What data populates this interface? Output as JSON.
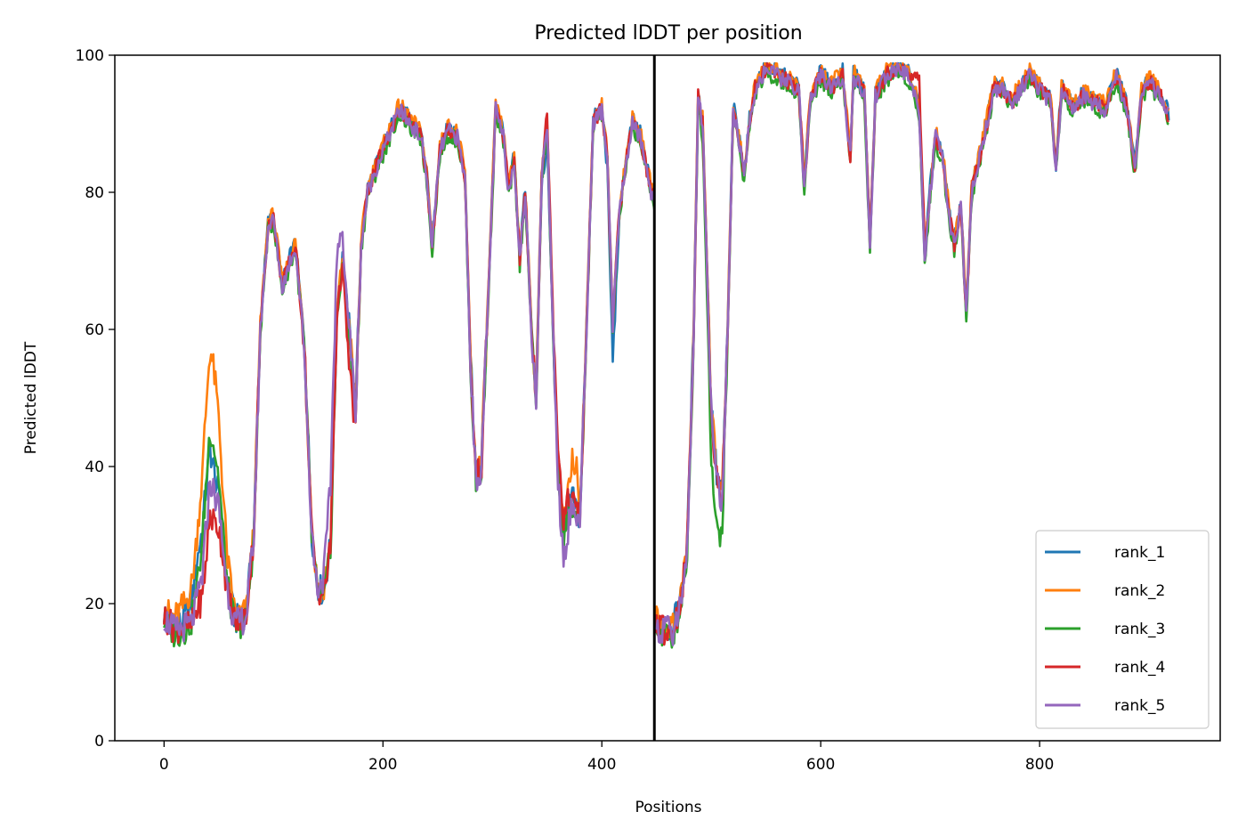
{
  "chart_data": {
    "type": "line",
    "title": "Predicted lDDT per position",
    "xlabel": "Positions",
    "ylabel": "Predicted lDDT",
    "xlim": [
      -45,
      965
    ],
    "ylim": [
      0,
      100
    ],
    "xticks": [
      0,
      200,
      400,
      600,
      800
    ],
    "yticks": [
      0,
      20,
      40,
      60,
      80,
      100
    ],
    "grid": false,
    "legend_position": "lower-right",
    "vertical_line": {
      "x": 448,
      "color": "#000000"
    },
    "series": [
      {
        "name": "rank_1",
        "color": "#1f77b4",
        "offset": 0.6,
        "bumps": [
          [
            35,
            8,
            6
          ],
          [
            410,
            4,
            -5
          ],
          [
            350,
            4,
            -3
          ]
        ]
      },
      {
        "name": "rank_2",
        "color": "#ff7f0e",
        "offset": 0.8,
        "bumps": [
          [
            42,
            9,
            18
          ],
          [
            375,
            4,
            6
          ],
          [
            20,
            10,
            2
          ]
        ]
      },
      {
        "name": "rank_3",
        "color": "#2ca02c",
        "offset": -0.5,
        "bumps": [
          [
            42,
            8,
            8
          ],
          [
            505,
            5,
            -5
          ],
          [
            500,
            6,
            -3
          ]
        ]
      },
      {
        "name": "rank_4",
        "color": "#d62728",
        "offset": 0.2,
        "bumps": [
          [
            42,
            8,
            -5
          ],
          [
            170,
            4,
            -5
          ],
          [
            690,
            4,
            4
          ],
          [
            360,
            8,
            3
          ]
        ]
      },
      {
        "name": "rank_5",
        "color": "#9467bd",
        "offset": 0.0,
        "bumps": [
          [
            155,
            6,
            10
          ],
          [
            365,
            5,
            -3
          ]
        ]
      }
    ],
    "profile": [
      [
        0,
        18
      ],
      [
        10,
        16
      ],
      [
        25,
        17
      ],
      [
        35,
        24
      ],
      [
        42,
        38
      ],
      [
        50,
        34
      ],
      [
        58,
        22
      ],
      [
        65,
        17
      ],
      [
        75,
        18
      ],
      [
        82,
        30
      ],
      [
        88,
        60
      ],
      [
        95,
        75
      ],
      [
        100,
        76
      ],
      [
        108,
        66
      ],
      [
        115,
        70
      ],
      [
        120,
        72
      ],
      [
        128,
        58
      ],
      [
        135,
        30
      ],
      [
        140,
        22
      ],
      [
        146,
        21
      ],
      [
        152,
        28
      ],
      [
        158,
        62
      ],
      [
        163,
        70
      ],
      [
        170,
        58
      ],
      [
        175,
        48
      ],
      [
        180,
        72
      ],
      [
        186,
        80
      ],
      [
        195,
        84
      ],
      [
        205,
        88
      ],
      [
        215,
        92
      ],
      [
        225,
        90
      ],
      [
        235,
        88
      ],
      [
        240,
        82
      ],
      [
        245,
        72
      ],
      [
        252,
        86
      ],
      [
        260,
        89
      ],
      [
        268,
        88
      ],
      [
        275,
        82
      ],
      [
        280,
        55
      ],
      [
        285,
        38
      ],
      [
        290,
        40
      ],
      [
        295,
        60
      ],
      [
        303,
        92
      ],
      [
        310,
        88
      ],
      [
        315,
        80
      ],
      [
        320,
        85
      ],
      [
        325,
        70
      ],
      [
        330,
        80
      ],
      [
        335,
        62
      ],
      [
        340,
        50
      ],
      [
        345,
        82
      ],
      [
        350,
        90
      ],
      [
        355,
        62
      ],
      [
        360,
        40
      ],
      [
        365,
        30
      ],
      [
        372,
        35
      ],
      [
        380,
        32
      ],
      [
        385,
        55
      ],
      [
        392,
        90
      ],
      [
        400,
        92
      ],
      [
        405,
        85
      ],
      [
        410,
        60
      ],
      [
        415,
        75
      ],
      [
        420,
        82
      ],
      [
        428,
        90
      ],
      [
        435,
        88
      ],
      [
        445,
        80
      ],
      [
        448,
        79
      ],
      [
        449,
        17
      ],
      [
        455,
        16
      ],
      [
        465,
        16
      ],
      [
        472,
        20
      ],
      [
        478,
        28
      ],
      [
        484,
        60
      ],
      [
        488,
        94
      ],
      [
        492,
        90
      ],
      [
        496,
        70
      ],
      [
        500,
        48
      ],
      [
        505,
        38
      ],
      [
        510,
        35
      ],
      [
        515,
        60
      ],
      [
        520,
        92
      ],
      [
        525,
        88
      ],
      [
        530,
        82
      ],
      [
        535,
        90
      ],
      [
        540,
        95
      ],
      [
        550,
        98
      ],
      [
        560,
        97
      ],
      [
        570,
        96
      ],
      [
        580,
        95
      ],
      [
        585,
        80
      ],
      [
        590,
        93
      ],
      [
        600,
        97
      ],
      [
        610,
        95
      ],
      [
        620,
        97
      ],
      [
        627,
        85
      ],
      [
        630,
        97
      ],
      [
        640,
        94
      ],
      [
        645,
        72
      ],
      [
        650,
        94
      ],
      [
        660,
        97
      ],
      [
        670,
        98
      ],
      [
        680,
        97
      ],
      [
        690,
        92
      ],
      [
        695,
        70
      ],
      [
        700,
        80
      ],
      [
        705,
        88
      ],
      [
        712,
        84
      ],
      [
        718,
        76
      ],
      [
        722,
        72
      ],
      [
        728,
        78
      ],
      [
        733,
        62
      ],
      [
        738,
        80
      ],
      [
        745,
        85
      ],
      [
        752,
        90
      ],
      [
        758,
        95
      ],
      [
        765,
        95
      ],
      [
        775,
        93
      ],
      [
        790,
        97
      ],
      [
        800,
        95
      ],
      [
        810,
        93
      ],
      [
        815,
        83
      ],
      [
        820,
        95
      ],
      [
        830,
        92
      ],
      [
        840,
        94
      ],
      [
        850,
        93
      ],
      [
        860,
        92
      ],
      [
        870,
        97
      ],
      [
        880,
        92
      ],
      [
        887,
        83
      ],
      [
        893,
        94
      ],
      [
        900,
        96
      ],
      [
        910,
        94
      ],
      [
        918,
        91
      ]
    ]
  },
  "legend": {
    "items": [
      "rank_1",
      "rank_2",
      "rank_3",
      "rank_4",
      "rank_5"
    ]
  }
}
